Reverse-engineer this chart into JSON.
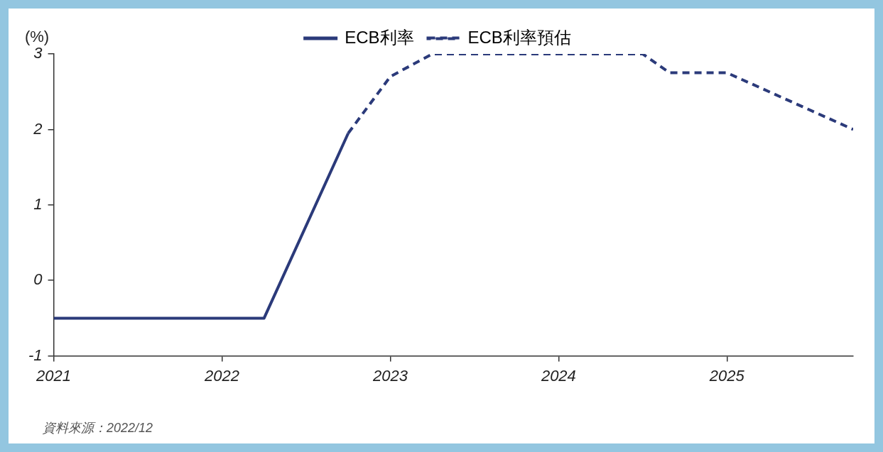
{
  "chart_data": {
    "type": "line",
    "ylabel": "(%)",
    "series": [
      {
        "name": "ECB利率",
        "color": "#2b3a7a",
        "line_style": "solid",
        "x": [
          2021,
          2022.25,
          2022.75
        ],
        "values": [
          -0.5,
          -0.5,
          1.95
        ]
      },
      {
        "name": "ECB利率預估",
        "color": "#2b3a7a",
        "line_style": "dashed",
        "x": [
          2022.75,
          2023,
          2023.25,
          2024.5,
          2024.66,
          2025,
          2025.75
        ],
        "values": [
          1.95,
          2.7,
          3,
          3,
          2.75,
          2.75,
          2
        ]
      }
    ],
    "xlim": [
      2021,
      2025.75
    ],
    "xticks": [
      2021,
      2022,
      2023,
      2024,
      2025
    ],
    "ylim": [
      -1,
      3
    ],
    "yticks": [
      -1,
      0,
      1,
      2,
      3
    ],
    "grid": false,
    "legend": "top",
    "marker": "none",
    "annotations": [
      "資料來源：2022/12"
    ]
  }
}
